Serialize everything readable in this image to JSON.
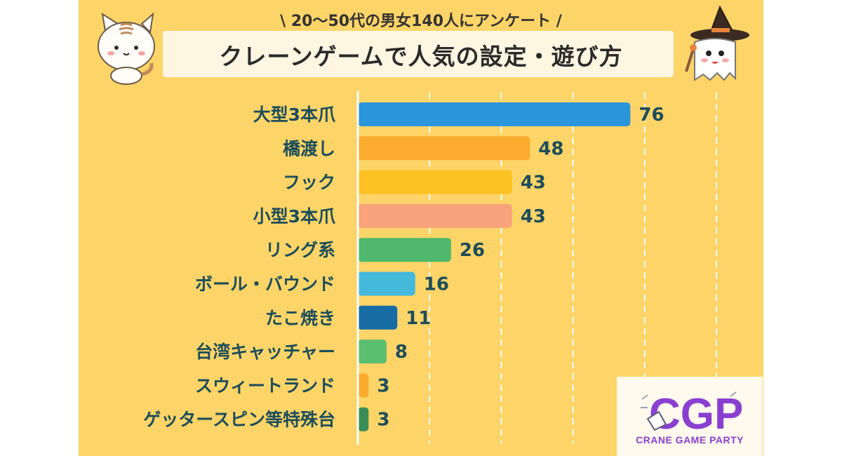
{
  "header": {
    "subtitle": "\\ 20～50代の男女140人にアンケート /",
    "title": "クレーンゲームで人気の設定・遊び方"
  },
  "colors": {
    "background": "#fcd467",
    "banner": "#fff6e2",
    "text": "#1d4d5a"
  },
  "chart_data": {
    "type": "bar",
    "orientation": "horizontal",
    "title": "クレーンゲームで人気の設定・遊び方",
    "subtitle": "20～50代の男女140人にアンケート",
    "xlim": [
      0,
      100
    ],
    "grid": true,
    "categories": [
      "大型3本爪",
      "橋渡し",
      "フック",
      "小型3本爪",
      "リング系",
      "ボール・バウンド",
      "たこ焼き",
      "台湾キャッチャー",
      "スウィートランド",
      "ゲッタースピン等特殊台"
    ],
    "values": [
      76,
      48,
      43,
      43,
      26,
      16,
      11,
      8,
      3,
      3
    ],
    "bar_colors": [
      "#2b95dc",
      "#fbab2e",
      "#fcc122",
      "#f8a37b",
      "#4fb86c",
      "#45b9dc",
      "#176ca4",
      "#5bbe70",
      "#fbab2e",
      "#3b8d55"
    ]
  },
  "logo": {
    "mark": "CGP",
    "text": "CRANE GAME PARTY"
  }
}
